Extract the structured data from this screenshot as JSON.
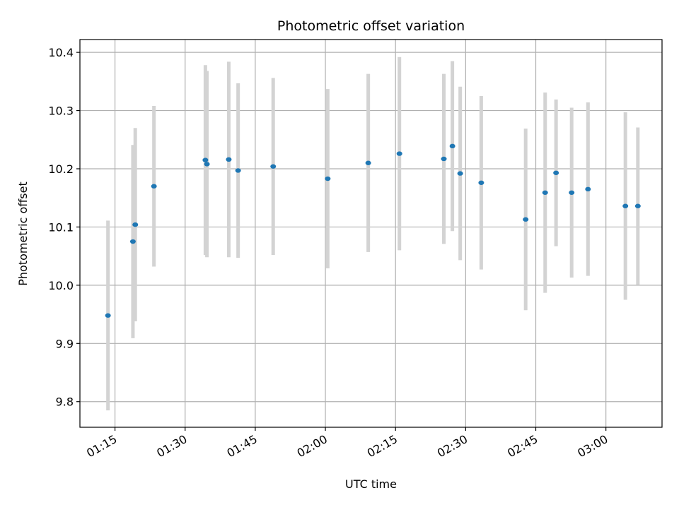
{
  "chart_data": {
    "type": "scatter",
    "title": "Photometric offset variation",
    "xlabel": "UTC time",
    "ylabel": "Photometric offset",
    "x_ticks": [
      "01:15",
      "01:30",
      "01:45",
      "02:00",
      "02:15",
      "02:30",
      "02:45",
      "03:00"
    ],
    "y_ticks": [
      "9.8",
      "9.9",
      "10.0",
      "10.1",
      "10.2",
      "10.3",
      "10.4"
    ],
    "xlim": [
      "01:07:30",
      "03:12:00"
    ],
    "ylim": [
      9.756,
      10.422
    ],
    "grid": true,
    "colors": {
      "point": "#1f77b4",
      "errorbar": "#d3d3d3",
      "grid": "#b0b0b0"
    },
    "series": [
      {
        "points": [
          {
            "x": "01:13:30",
            "y": 9.948,
            "yerr": 0.163
          },
          {
            "x": "01:18:50",
            "y": 10.075,
            "yerr": 0.166
          },
          {
            "x": "01:19:20",
            "y": 10.104,
            "yerr": 0.166
          },
          {
            "x": "01:23:20",
            "y": 10.17,
            "yerr": 0.138
          },
          {
            "x": "01:34:20",
            "y": 10.215,
            "yerr": 0.163
          },
          {
            "x": "01:34:40",
            "y": 10.208,
            "yerr": 0.16
          },
          {
            "x": "01:39:20",
            "y": 10.216,
            "yerr": 0.168
          },
          {
            "x": "01:41:20",
            "y": 10.197,
            "yerr": 0.15
          },
          {
            "x": "01:48:50",
            "y": 10.204,
            "yerr": 0.152
          },
          {
            "x": "02:00:30",
            "y": 10.183,
            "yerr": 0.154
          },
          {
            "x": "02:09:10",
            "y": 10.21,
            "yerr": 0.153
          },
          {
            "x": "02:15:50",
            "y": 10.226,
            "yerr": 0.166
          },
          {
            "x": "02:25:20",
            "y": 10.217,
            "yerr": 0.146
          },
          {
            "x": "02:27:10",
            "y": 10.239,
            "yerr": 0.146
          },
          {
            "x": "02:28:50",
            "y": 10.192,
            "yerr": 0.149
          },
          {
            "x": "02:33:20",
            "y": 10.176,
            "yerr": 0.149
          },
          {
            "x": "02:42:50",
            "y": 10.113,
            "yerr": 0.156
          },
          {
            "x": "02:47:00",
            "y": 10.159,
            "yerr": 0.172
          },
          {
            "x": "02:49:20",
            "y": 10.193,
            "yerr": 0.126
          },
          {
            "x": "02:52:40",
            "y": 10.159,
            "yerr": 0.146
          },
          {
            "x": "02:56:10",
            "y": 10.165,
            "yerr": 0.149
          },
          {
            "x": "03:04:10",
            "y": 10.136,
            "yerr": 0.161
          },
          {
            "x": "03:06:50",
            "y": 10.136,
            "yerr": 0.135
          }
        ]
      }
    ]
  }
}
